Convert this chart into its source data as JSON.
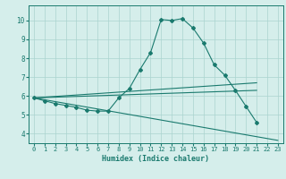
{
  "xlabel": "Humidex (Indice chaleur)",
  "background_color": "#d5eeeb",
  "grid_color": "#aad4cf",
  "line_color": "#1a7a6e",
  "x_values": [
    0,
    1,
    2,
    3,
    4,
    5,
    6,
    7,
    8,
    9,
    10,
    11,
    12,
    13,
    14,
    15,
    16,
    17,
    18,
    19,
    20,
    21,
    22,
    23
  ],
  "series1": [
    5.9,
    5.75,
    5.6,
    5.5,
    5.4,
    5.25,
    5.2,
    5.2,
    5.9,
    6.4,
    7.4,
    8.3,
    10.05,
    10.0,
    10.1,
    9.6,
    8.8,
    7.65,
    7.1,
    6.3,
    5.45,
    4.6,
    null,
    null
  ],
  "line1_x": [
    0,
    21
  ],
  "line1_y": [
    5.9,
    6.7
  ],
  "line2_x": [
    0,
    21
  ],
  "line2_y": [
    5.9,
    6.3
  ],
  "line3_x": [
    0,
    23
  ],
  "line3_y": [
    5.9,
    3.65
  ],
  "xlim": [
    -0.5,
    23.5
  ],
  "ylim": [
    3.5,
    10.8
  ],
  "yticks": [
    4,
    5,
    6,
    7,
    8,
    9,
    10
  ],
  "xticks": [
    0,
    1,
    2,
    3,
    4,
    5,
    6,
    7,
    8,
    9,
    10,
    11,
    12,
    13,
    14,
    15,
    16,
    17,
    18,
    19,
    20,
    21,
    22,
    23
  ]
}
